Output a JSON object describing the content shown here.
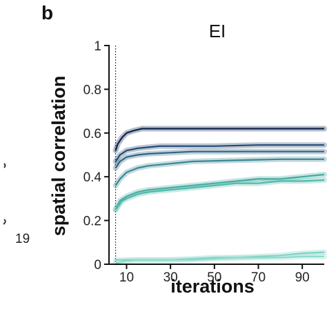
{
  "panel_label": "b",
  "side_label": "19",
  "chart_data": {
    "type": "line",
    "title": "EI",
    "xlabel": "iterations",
    "ylabel": "spatial correlation",
    "xlim": [
      2,
      100
    ],
    "ylim": [
      0,
      1
    ],
    "x_ticks": [
      10,
      30,
      50,
      70,
      90
    ],
    "y_ticks": [
      0,
      0.2,
      0.4,
      0.6,
      0.8,
      1
    ],
    "y_tick_labels": [
      "0",
      "0.2",
      "0.4",
      "0.6",
      "0.8",
      "1"
    ],
    "vline_x": 5,
    "grid": false,
    "legend": "none",
    "series": [
      {
        "color": "#0d2350",
        "x": [
          5,
          6,
          8,
          10,
          13,
          17,
          22,
          30,
          50,
          70,
          100
        ],
        "y": [
          0.52,
          0.55,
          0.58,
          0.6,
          0.61,
          0.62,
          0.62,
          0.62,
          0.62,
          0.62,
          0.62
        ]
      },
      {
        "color": "#234a75",
        "x": [
          5,
          7,
          10,
          15,
          20,
          25,
          35,
          50,
          70,
          100
        ],
        "y": [
          0.47,
          0.5,
          0.52,
          0.53,
          0.535,
          0.54,
          0.54,
          0.54,
          0.545,
          0.545
        ]
      },
      {
        "color": "#2f6584",
        "x": [
          5,
          7,
          10,
          15,
          20,
          30,
          40,
          50,
          70,
          100
        ],
        "y": [
          0.44,
          0.47,
          0.49,
          0.5,
          0.505,
          0.51,
          0.515,
          0.515,
          0.515,
          0.515
        ]
      },
      {
        "color": "#3a8795",
        "x": [
          5,
          7,
          10,
          15,
          20,
          30,
          40,
          60,
          80,
          100
        ],
        "y": [
          0.36,
          0.39,
          0.42,
          0.44,
          0.45,
          0.46,
          0.47,
          0.475,
          0.48,
          0.48
        ]
      },
      {
        "color": "#42a9a0",
        "x": [
          5,
          7,
          10,
          15,
          20,
          30,
          40,
          50,
          60,
          70,
          80,
          90,
          100
        ],
        "y": [
          0.25,
          0.29,
          0.31,
          0.33,
          0.34,
          0.35,
          0.36,
          0.37,
          0.38,
          0.39,
          0.39,
          0.4,
          0.41
        ]
      },
      {
        "color": "#52b8aa",
        "x": [
          5,
          8,
          10,
          15,
          20,
          30,
          40,
          50,
          60,
          70,
          80,
          90,
          100
        ],
        "y": [
          0.25,
          0.29,
          0.3,
          0.32,
          0.33,
          0.34,
          0.35,
          0.36,
          0.37,
          0.37,
          0.38,
          0.38,
          0.385
        ]
      },
      {
        "color": "#7ed2c4",
        "x": [
          5,
          10,
          20,
          30,
          40,
          50,
          60,
          70,
          80,
          90,
          100
        ],
        "y": [
          0.02,
          0.02,
          0.02,
          0.02,
          0.025,
          0.03,
          0.03,
          0.035,
          0.04,
          0.05,
          0.055
        ]
      },
      {
        "color": "#8edbcb",
        "x": [
          5,
          10,
          15,
          20,
          30,
          40,
          50,
          60,
          70,
          80,
          90,
          100
        ],
        "y": [
          0.005,
          0.015,
          0.02,
          0.02,
          0.02,
          0.02,
          0.025,
          0.03,
          0.03,
          0.03,
          0.035,
          0.035
        ]
      }
    ]
  }
}
